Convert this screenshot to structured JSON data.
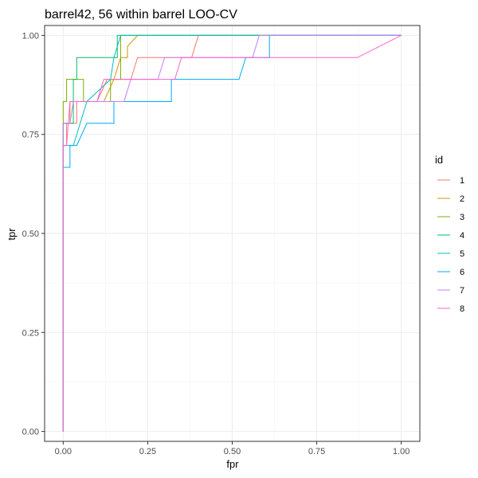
{
  "chart_data": {
    "type": "line",
    "title": "barrel42, 56 within barrel LOO-CV",
    "xlabel": "fpr",
    "ylabel": "tpr",
    "xlim": [
      -0.055,
      1.055
    ],
    "ylim": [
      -0.025,
      1.025
    ],
    "x_ticks": [
      0.0,
      0.25,
      0.5,
      0.75,
      1.0
    ],
    "x_tick_labels": [
      "0.00",
      "0.25",
      "0.50",
      "0.75",
      "1.00"
    ],
    "y_ticks": [
      0.0,
      0.25,
      0.5,
      0.75,
      1.0
    ],
    "y_tick_labels": [
      "0.00",
      "0.25",
      "0.50",
      "0.75",
      "1.00"
    ],
    "grid": true,
    "legend": {
      "title": "id",
      "position": "right"
    },
    "series": [
      {
        "name": "1",
        "color": "#F8766D",
        "points": [
          [
            0,
            0
          ],
          [
            0,
            0.722
          ],
          [
            0.01,
            0.722
          ],
          [
            0.01,
            0.778
          ],
          [
            0.04,
            0.778
          ],
          [
            0.04,
            0.833
          ],
          [
            0.1,
            0.833
          ],
          [
            0.13,
            0.889
          ],
          [
            0.2,
            0.889
          ],
          [
            0.22,
            0.944
          ],
          [
            0.38,
            0.944
          ],
          [
            0.4,
            1.0
          ],
          [
            1.0,
            1.0
          ]
        ]
      },
      {
        "name": "2",
        "color": "#CD9600",
        "points": [
          [
            0,
            0
          ],
          [
            0,
            0.778
          ],
          [
            0.02,
            0.778
          ],
          [
            0.02,
            0.833
          ],
          [
            0.12,
            0.833
          ],
          [
            0.15,
            0.889
          ],
          [
            0.17,
            0.944
          ],
          [
            0.19,
            0.944
          ],
          [
            0.19,
            0.972
          ],
          [
            0.22,
            1.0
          ],
          [
            0.26,
            1.0
          ],
          [
            1.0,
            1.0
          ]
        ]
      },
      {
        "name": "3",
        "color": "#7CAE00",
        "points": [
          [
            0,
            0
          ],
          [
            0,
            0.833
          ],
          [
            0.01,
            0.833
          ],
          [
            0.01,
            0.889
          ],
          [
            0.06,
            0.889
          ],
          [
            0.06,
            0.833
          ],
          [
            0.14,
            0.833
          ],
          [
            0.14,
            0.889
          ],
          [
            0.17,
            0.889
          ],
          [
            0.17,
            1.0
          ],
          [
            0.4,
            1.0
          ],
          [
            1.0,
            1.0
          ]
        ]
      },
      {
        "name": "4",
        "color": "#00BE67",
        "points": [
          [
            0,
            0
          ],
          [
            0,
            0.778
          ],
          [
            0.03,
            0.778
          ],
          [
            0.03,
            0.889
          ],
          [
            0.04,
            0.889
          ],
          [
            0.04,
            0.944
          ],
          [
            0.16,
            0.944
          ],
          [
            0.16,
            1.0
          ],
          [
            0.6,
            1.0
          ],
          [
            1.0,
            1.0
          ]
        ]
      },
      {
        "name": "5",
        "color": "#00BFC4",
        "points": [
          [
            0,
            0
          ],
          [
            0,
            0.722
          ],
          [
            0.03,
            0.722
          ],
          [
            0.07,
            0.833
          ],
          [
            0.14,
            0.889
          ],
          [
            0.15,
            0.944
          ],
          [
            0.17,
            1.0
          ],
          [
            0.38,
            1.0
          ],
          [
            1.0,
            1.0
          ]
        ]
      },
      {
        "name": "6",
        "color": "#00A9FF",
        "points": [
          [
            0,
            0
          ],
          [
            0,
            0.667
          ],
          [
            0.02,
            0.667
          ],
          [
            0.02,
            0.722
          ],
          [
            0.04,
            0.722
          ],
          [
            0.07,
            0.778
          ],
          [
            0.15,
            0.778
          ],
          [
            0.15,
            0.833
          ],
          [
            0.32,
            0.833
          ],
          [
            0.32,
            0.889
          ],
          [
            0.52,
            0.889
          ],
          [
            0.54,
            0.944
          ],
          [
            0.61,
            0.944
          ],
          [
            0.61,
            1.0
          ],
          [
            1.0,
            1.0
          ]
        ]
      },
      {
        "name": "7",
        "color": "#C77CFF",
        "points": [
          [
            0,
            0
          ],
          [
            0,
            0.778
          ],
          [
            0.02,
            0.778
          ],
          [
            0.03,
            0.833
          ],
          [
            0.18,
            0.833
          ],
          [
            0.2,
            0.889
          ],
          [
            0.28,
            0.889
          ],
          [
            0.3,
            0.944
          ],
          [
            0.56,
            0.944
          ],
          [
            0.58,
            1.0
          ],
          [
            1.0,
            1.0
          ]
        ]
      },
      {
        "name": "8",
        "color": "#FF61CC",
        "points": [
          [
            0,
            0
          ],
          [
            0,
            0.722
          ],
          [
            0.01,
            0.722
          ],
          [
            0.02,
            0.833
          ],
          [
            0.1,
            0.833
          ],
          [
            0.12,
            0.889
          ],
          [
            0.33,
            0.889
          ],
          [
            0.35,
            0.944
          ],
          [
            0.87,
            0.944
          ],
          [
            1.0,
            1.0
          ]
        ]
      }
    ]
  }
}
